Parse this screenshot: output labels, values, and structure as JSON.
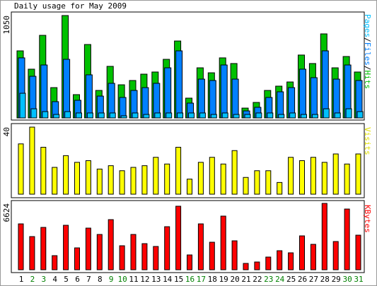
{
  "chart_data": [
    {
      "type": "bar",
      "title": "Daily usage for May 2009",
      "legend_separator": "/",
      "ylim": [
        0,
        1050
      ],
      "yticks": [
        1050
      ],
      "series": [
        {
          "name": "Pages",
          "color": "#00c0ff",
          "values": [
            253,
            94,
            65,
            36,
            65,
            51,
            51,
            51,
            51,
            22,
            51,
            36,
            51,
            51,
            51,
            51,
            51,
            36,
            51,
            36,
            36,
            51,
            51,
            36,
            51,
            36,
            36,
            94,
            51,
            94,
            65
          ]
        },
        {
          "name": "Files",
          "color": "#0080ff",
          "values": [
            616,
            427,
            543,
            167,
            601,
            181,
            442,
            224,
            355,
            210,
            282,
            311,
            355,
            514,
            688,
            152,
            398,
            384,
            543,
            398,
            72,
            109,
            210,
            268,
            311,
            500,
            413,
            688,
            398,
            543,
            384
          ]
        },
        {
          "name": "Hits",
          "color": "#00c000",
          "values": [
            688,
            500,
            847,
            311,
            1050,
            239,
            753,
            282,
            529,
            340,
            384,
            449,
            471,
            601,
            789,
            203,
            514,
            463,
            616,
            558,
            101,
            159,
            282,
            326,
            369,
            645,
            558,
            862,
            514,
            630,
            471
          ]
        }
      ]
    },
    {
      "type": "bar",
      "ylim": [
        0,
        40
      ],
      "yticks": [
        40
      ],
      "series": [
        {
          "name": "Visits",
          "color": "#ffff00",
          "values": [
            30,
            40,
            28,
            16,
            23,
            19,
            20,
            15,
            17,
            14,
            16,
            17,
            22,
            18,
            28,
            9,
            19,
            22,
            18,
            26,
            10,
            14,
            14,
            7,
            22,
            20,
            22,
            19,
            24,
            18,
            24
          ]
        }
      ]
    },
    {
      "type": "bar",
      "ylim": [
        0,
        6624
      ],
      "yticks": [
        6624
      ],
      "categories": [
        "1",
        "2",
        "3",
        "4",
        "5",
        "6",
        "7",
        "8",
        "9",
        "10",
        "11",
        "12",
        "13",
        "14",
        "15",
        "16",
        "17",
        "18",
        "19",
        "20",
        "21",
        "22",
        "23",
        "24",
        "25",
        "26",
        "27",
        "28",
        "29",
        "30",
        "31"
      ],
      "category_colors": [
        "#000000",
        "#008000",
        "#008000",
        "#000000",
        "#000000",
        "#000000",
        "#000000",
        "#000000",
        "#008000",
        "#008000",
        "#000000",
        "#000000",
        "#000000",
        "#000000",
        "#000000",
        "#008000",
        "#008000",
        "#000000",
        "#000000",
        "#000000",
        "#000000",
        "#000000",
        "#008000",
        "#008000",
        "#000000",
        "#000000",
        "#000000",
        "#000000",
        "#000000",
        "#008000",
        "#008000"
      ],
      "series": [
        {
          "name": "KBytes",
          "color": "#ff0000",
          "values": [
            4580,
            3312,
            4228,
            1409,
            4439,
            2184,
            4157,
            3523,
            5003,
            2396,
            3523,
            2607,
            2325,
            4298,
            6342,
            1480,
            4580,
            2748,
            5355,
            2889,
            634,
            775,
            1268,
            1902,
            1691,
            3382,
            2537,
            6624,
            2818,
            6060,
            3452
          ]
        }
      ]
    }
  ]
}
